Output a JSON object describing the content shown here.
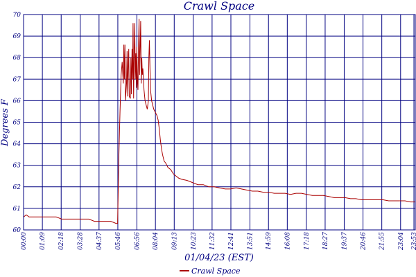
{
  "chart_data": {
    "type": "line",
    "title": "Crawl Space",
    "xlabel": "01/04/23 (EST)",
    "ylabel": "Degrees F",
    "ylim": [
      60,
      70
    ],
    "xlim": [
      0,
      1438
    ],
    "grid": true,
    "legend_placement": "bottom-center",
    "y_ticks": [
      60,
      61,
      62,
      63,
      64,
      65,
      66,
      67,
      68,
      69,
      70
    ],
    "y_tick_labels": [
      "60",
      "61",
      "62",
      "63",
      "64",
      "65",
      "66",
      "67",
      "68",
      "69",
      "70"
    ],
    "x_ticks": [
      {
        "minute": 0,
        "label": "00:00"
      },
      {
        "minute": 69,
        "label": "01:09"
      },
      {
        "minute": 138,
        "label": "02:18"
      },
      {
        "minute": 208,
        "label": "03:28"
      },
      {
        "minute": 277,
        "label": "04:37"
      },
      {
        "minute": 346,
        "label": "05:46"
      },
      {
        "minute": 416,
        "label": "06:56"
      },
      {
        "minute": 484,
        "label": "08:04"
      },
      {
        "minute": 553,
        "label": "09:13"
      },
      {
        "minute": 623,
        "label": "10:23"
      },
      {
        "minute": 692,
        "label": "11:32"
      },
      {
        "minute": 761,
        "label": "12:41"
      },
      {
        "minute": 831,
        "label": "13:51"
      },
      {
        "minute": 899,
        "label": "14:59"
      },
      {
        "minute": 968,
        "label": "16:08"
      },
      {
        "minute": 1038,
        "label": "17:18"
      },
      {
        "minute": 1107,
        "label": "18:27"
      },
      {
        "minute": 1177,
        "label": "19:37"
      },
      {
        "minute": 1246,
        "label": "20:46"
      },
      {
        "minute": 1315,
        "label": "21:55"
      },
      {
        "minute": 1384,
        "label": "23:04"
      },
      {
        "minute": 1433,
        "label": "23:53"
      }
    ],
    "series": [
      {
        "name": "Crawl Space",
        "color": "#aa0000",
        "points": [
          [
            0,
            60.6
          ],
          [
            10,
            60.7
          ],
          [
            20,
            60.6
          ],
          [
            40,
            60.6
          ],
          [
            60,
            60.6
          ],
          [
            80,
            60.6
          ],
          [
            100,
            60.6
          ],
          [
            120,
            60.6
          ],
          [
            140,
            60.5
          ],
          [
            160,
            60.5
          ],
          [
            180,
            60.5
          ],
          [
            200,
            60.5
          ],
          [
            220,
            60.5
          ],
          [
            240,
            60.5
          ],
          [
            260,
            60.4
          ],
          [
            280,
            60.4
          ],
          [
            300,
            60.4
          ],
          [
            320,
            60.4
          ],
          [
            330,
            60.35
          ],
          [
            340,
            60.3
          ],
          [
            345,
            60.3
          ],
          [
            350,
            63.5
          ],
          [
            354,
            65.5
          ],
          [
            358,
            67.2
          ],
          [
            362,
            67.8
          ],
          [
            366,
            66.8
          ],
          [
            368,
            68.6
          ],
          [
            370,
            67.0
          ],
          [
            372,
            68.6
          ],
          [
            374,
            66.0
          ],
          [
            378,
            66.8
          ],
          [
            380,
            68.3
          ],
          [
            382,
            66.2
          ],
          [
            384,
            67.5
          ],
          [
            386,
            68.4
          ],
          [
            388,
            66.2
          ],
          [
            392,
            66.1
          ],
          [
            394,
            68.0
          ],
          [
            396,
            66.3
          ],
          [
            398,
            68.4
          ],
          [
            400,
            67.0
          ],
          [
            402,
            69.6
          ],
          [
            404,
            66.1
          ],
          [
            406,
            68.2
          ],
          [
            408,
            69.6
          ],
          [
            410,
            67.0
          ],
          [
            412,
            68.2
          ],
          [
            414,
            66.6
          ],
          [
            416,
            68.5
          ],
          [
            418,
            67.0
          ],
          [
            420,
            66.5
          ],
          [
            422,
            68.5
          ],
          [
            424,
            69.8
          ],
          [
            426,
            67.2
          ],
          [
            428,
            68.5
          ],
          [
            430,
            69.7
          ],
          [
            432,
            66.8
          ],
          [
            434,
            68.0
          ],
          [
            436,
            67.2
          ],
          [
            438,
            67.5
          ],
          [
            442,
            66.5
          ],
          [
            446,
            66.0
          ],
          [
            450,
            65.8
          ],
          [
            454,
            65.6
          ],
          [
            458,
            66.0
          ],
          [
            460,
            68.0
          ],
          [
            462,
            68.8
          ],
          [
            464,
            67.5
          ],
          [
            466,
            66.5
          ],
          [
            470,
            66.0
          ],
          [
            474,
            65.8
          ],
          [
            478,
            65.6
          ],
          [
            482,
            65.5
          ],
          [
            486,
            65.4
          ],
          [
            490,
            65.3
          ],
          [
            494,
            65.1
          ],
          [
            498,
            64.7
          ],
          [
            502,
            64.2
          ],
          [
            506,
            63.8
          ],
          [
            510,
            63.5
          ],
          [
            516,
            63.2
          ],
          [
            522,
            63.1
          ],
          [
            530,
            62.9
          ],
          [
            540,
            62.8
          ],
          [
            550,
            62.6
          ],
          [
            560,
            62.5
          ],
          [
            570,
            62.4
          ],
          [
            580,
            62.35
          ],
          [
            600,
            62.3
          ],
          [
            620,
            62.2
          ],
          [
            640,
            62.1
          ],
          [
            660,
            62.1
          ],
          [
            680,
            62.0
          ],
          [
            700,
            62.0
          ],
          [
            720,
            61.95
          ],
          [
            740,
            61.9
          ],
          [
            760,
            61.9
          ],
          [
            780,
            61.95
          ],
          [
            800,
            61.9
          ],
          [
            820,
            61.85
          ],
          [
            840,
            61.8
          ],
          [
            860,
            61.8
          ],
          [
            880,
            61.75
          ],
          [
            900,
            61.75
          ],
          [
            920,
            61.7
          ],
          [
            940,
            61.7
          ],
          [
            960,
            61.7
          ],
          [
            980,
            61.65
          ],
          [
            1000,
            61.7
          ],
          [
            1020,
            61.7
          ],
          [
            1040,
            61.65
          ],
          [
            1060,
            61.6
          ],
          [
            1080,
            61.6
          ],
          [
            1100,
            61.6
          ],
          [
            1120,
            61.55
          ],
          [
            1140,
            61.5
          ],
          [
            1160,
            61.5
          ],
          [
            1180,
            61.5
          ],
          [
            1200,
            61.45
          ],
          [
            1220,
            61.45
          ],
          [
            1240,
            61.4
          ],
          [
            1260,
            61.4
          ],
          [
            1280,
            61.4
          ],
          [
            1300,
            61.4
          ],
          [
            1320,
            61.4
          ],
          [
            1340,
            61.35
          ],
          [
            1360,
            61.35
          ],
          [
            1380,
            61.35
          ],
          [
            1400,
            61.35
          ],
          [
            1420,
            61.3
          ],
          [
            1438,
            61.3
          ]
        ]
      }
    ]
  }
}
